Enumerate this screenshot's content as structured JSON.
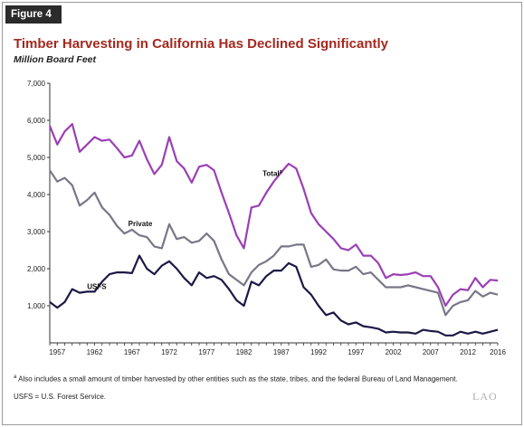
{
  "figure_label": "Figure 4",
  "title": "Timber Harvesting in California Has Declined Significantly",
  "unit": "Million Board Feet",
  "footnote": {
    "marker": "a",
    "text": "Also includes a small amount of timber harvested by other entities such as the state, tribes, and the federal Bureau of Land Management."
  },
  "abbreviation_note": "USFS = U.S. Forest Service.",
  "brand": "LAO",
  "colors": {
    "total": "#9b3fb5",
    "private": "#777788",
    "usfs": "#1c1846",
    "title": "#a3291f"
  },
  "chart_data": {
    "type": "line",
    "title": "Timber Harvesting in California Has Declined Significantly",
    "ylabel": "Million Board Feet",
    "xlabel": "",
    "ylim": [
      0,
      7000
    ],
    "yticks": [
      "7,000",
      "6,000",
      "5,000",
      "4,000",
      "3,000",
      "2,000",
      "1,000"
    ],
    "xticks": [
      "1957",
      "1962",
      "1967",
      "1972",
      "1977",
      "1982",
      "1987",
      "1992",
      "1997",
      "2002",
      "2007",
      "2012",
      "2016"
    ],
    "grid": false,
    "x": [
      1956,
      1957,
      1958,
      1959,
      1960,
      1961,
      1962,
      1963,
      1964,
      1965,
      1966,
      1967,
      1968,
      1969,
      1970,
      1971,
      1972,
      1973,
      1974,
      1975,
      1976,
      1977,
      1978,
      1979,
      1980,
      1981,
      1982,
      1983,
      1984,
      1985,
      1986,
      1987,
      1988,
      1989,
      1990,
      1991,
      1992,
      1993,
      1994,
      1995,
      1996,
      1997,
      1998,
      1999,
      2000,
      2001,
      2002,
      2003,
      2004,
      2005,
      2006,
      2007,
      2008,
      2009,
      2010,
      2011,
      2012,
      2013,
      2014,
      2015,
      2016
    ],
    "series": [
      {
        "name": "Total",
        "label_marker": "a",
        "values": [
          5850,
          5350,
          5700,
          5900,
          5150,
          5350,
          5550,
          5450,
          5480,
          5250,
          5000,
          5050,
          5450,
          4950,
          4550,
          4800,
          5550,
          4900,
          4700,
          4320,
          4750,
          4800,
          4650,
          4050,
          3500,
          2900,
          2550,
          3650,
          3700,
          4050,
          4350,
          4600,
          4830,
          4700,
          4150,
          3500,
          3200,
          3000,
          2800,
          2550,
          2500,
          2650,
          2350,
          2350,
          2150,
          1750,
          1850,
          1830,
          1850,
          1900,
          1800,
          1800,
          1500,
          1000,
          1300,
          1450,
          1420,
          1750,
          1500,
          1700,
          1680
        ]
      },
      {
        "name": "Private",
        "values": [
          4650,
          4350,
          4450,
          4250,
          3700,
          3850,
          4050,
          3650,
          3450,
          3150,
          2950,
          3050,
          2900,
          2850,
          2600,
          2550,
          3200,
          2800,
          2850,
          2700,
          2750,
          2950,
          2750,
          2250,
          1850,
          1700,
          1550,
          1900,
          2100,
          2200,
          2350,
          2600,
          2600,
          2650,
          2650,
          2050,
          2100,
          2250,
          1980,
          1950,
          1950,
          2050,
          1850,
          1900,
          1700,
          1500,
          1500,
          1500,
          1550,
          1500,
          1450,
          1400,
          1350,
          750,
          1000,
          1100,
          1150,
          1400,
          1250,
          1350,
          1300
        ]
      },
      {
        "name": "USFS",
        "values": [
          1100,
          950,
          1100,
          1450,
          1350,
          1380,
          1380,
          1650,
          1850,
          1900,
          1900,
          1880,
          2350,
          2000,
          1850,
          2080,
          2200,
          2000,
          1750,
          1550,
          1900,
          1750,
          1800,
          1700,
          1450,
          1150,
          1000,
          1650,
          1550,
          1800,
          1950,
          1950,
          2150,
          2050,
          1500,
          1300,
          1000,
          750,
          820,
          600,
          500,
          550,
          450,
          420,
          380,
          280,
          300,
          280,
          280,
          250,
          350,
          320,
          300,
          200,
          200,
          300,
          250,
          300,
          250,
          300,
          350
        ]
      }
    ]
  }
}
